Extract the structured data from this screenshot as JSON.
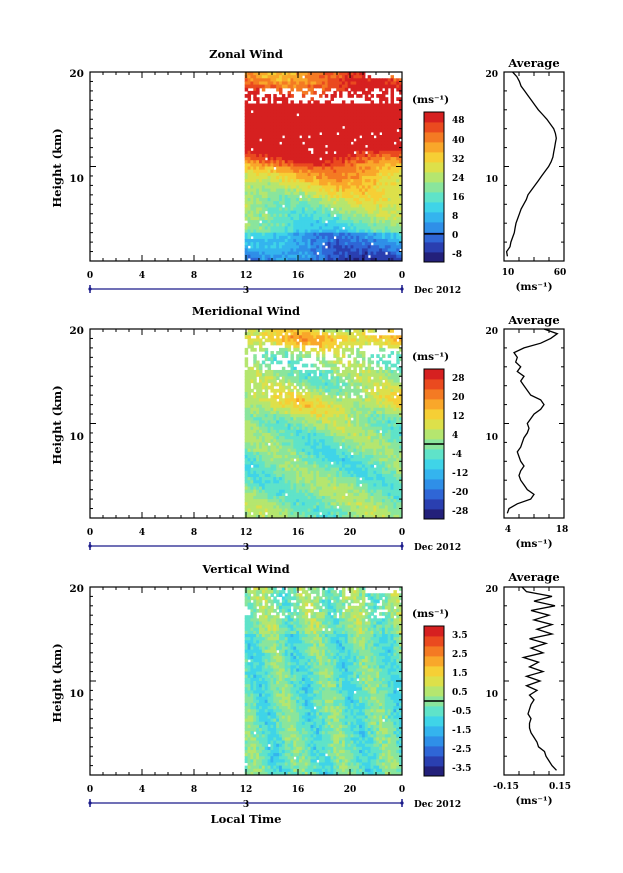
{
  "chart_data": [
    {
      "type": "heatmap",
      "title": "Zonal Wind",
      "ylabel": "Height (km)",
      "ylim": [
        0,
        20
      ],
      "y_ticks": [
        "10",
        "20"
      ],
      "x_ticks": [
        "0",
        "4",
        "8",
        "12",
        "16",
        "20",
        "0"
      ],
      "date_label": "3",
      "date_suffix": "Dec 2012",
      "data_start_hour": 11.9,
      "colorbar": {
        "unit": "(ms⁻¹)",
        "labels": [
          "48",
          "40",
          "32",
          "24",
          "16",
          "8",
          "0",
          "-8"
        ],
        "range": [
          -12,
          52
        ]
      },
      "average": {
        "title": "Average",
        "x_ticks": [
          "10",
          "60"
        ],
        "xlim": [
          0,
          70
        ],
        "xunit": "(ms⁻¹)",
        "y_ticks": [
          "10",
          "20"
        ],
        "heights": [
          0.5,
          1,
          1.5,
          2,
          2.5,
          3,
          3.5,
          4,
          4.5,
          5,
          5.5,
          6,
          6.5,
          7,
          7.5,
          8,
          8.5,
          9,
          9.5,
          10,
          10.5,
          11,
          11.5,
          12,
          12.5,
          13,
          13.5,
          14,
          14.5,
          15,
          15.5,
          16,
          16.5,
          17,
          17.5,
          18,
          18.5,
          19,
          19.5,
          20
        ],
        "values": [
          4,
          3,
          7,
          8,
          10,
          12,
          13,
          14,
          16,
          18,
          20,
          23,
          26,
          28,
          32,
          36,
          40,
          44,
          48,
          52,
          55,
          57,
          58,
          59,
          60,
          61,
          60,
          58,
          54,
          50,
          45,
          40,
          36,
          32,
          28,
          24,
          20,
          18,
          15,
          10
        ]
      }
    },
    {
      "type": "heatmap",
      "title": "Meridional Wind",
      "ylabel": "Height (km)",
      "ylim": [
        0,
        20
      ],
      "y_ticks": [
        "10",
        "20"
      ],
      "x_ticks": [
        "0",
        "4",
        "8",
        "12",
        "16",
        "20",
        "0"
      ],
      "date_label": "3",
      "date_suffix": "Dec 2012",
      "data_start_hour": 11.9,
      "colorbar": {
        "unit": "(ms⁻¹)",
        "labels": [
          "28",
          "20",
          "12",
          "4",
          "-4",
          "-12",
          "-20",
          "-28"
        ],
        "range": [
          -32,
          32
        ]
      },
      "average": {
        "title": "Average",
        "x_ticks": [
          "4",
          "18"
        ],
        "xlim": [
          0,
          18
        ],
        "xunit": "(ms⁻¹)",
        "y_ticks": [
          "10",
          "20"
        ],
        "heights": [
          0.5,
          1,
          1.5,
          2,
          2.5,
          3,
          3.5,
          4,
          4.5,
          5,
          5.5,
          6,
          6.5,
          7,
          7.5,
          8,
          8.5,
          9,
          9.5,
          10,
          10.5,
          11,
          11.5,
          12,
          12.5,
          13,
          13.5,
          14,
          14.5,
          15,
          15.5,
          16,
          16.5,
          17,
          17.5,
          18,
          18.5,
          19,
          19.5,
          20
        ],
        "values": [
          1,
          1.5,
          4,
          8,
          9,
          7,
          6,
          5,
          4.5,
          5,
          6,
          5,
          4.5,
          4,
          5,
          5.5,
          6,
          7,
          7.5,
          7,
          8,
          9,
          11,
          12,
          11,
          8,
          7,
          6,
          5,
          6,
          4,
          5,
          3.5,
          4,
          3,
          6,
          11,
          14,
          16,
          12
        ]
      }
    },
    {
      "type": "heatmap",
      "title": "Vertical Wind",
      "ylabel": "Height (km)",
      "ylim": [
        0,
        20
      ],
      "y_ticks": [
        "10",
        "20"
      ],
      "x_ticks": [
        "0",
        "4",
        "8",
        "12",
        "16",
        "20",
        "0"
      ],
      "date_label": "3",
      "date_suffix": "Dec 2012",
      "xlabel": "Local Time",
      "data_start_hour": 11.9,
      "colorbar": {
        "unit": "(ms⁻¹)",
        "labels": [
          "3.5",
          "2.5",
          "1.5",
          "0.5",
          "-0.5",
          "-1.5",
          "-2.5",
          "-3.5"
        ],
        "range": [
          -4,
          4
        ]
      },
      "average": {
        "title": "Average",
        "x_ticks": [
          "-0.15",
          "0.15"
        ],
        "xlim": [
          -0.2,
          0.2
        ],
        "xunit": "(ms⁻¹)",
        "y_ticks": [
          "10",
          "20"
        ],
        "heights": [
          0.5,
          1,
          1.5,
          2,
          2.5,
          3,
          3.5,
          4,
          4.5,
          5,
          5.5,
          6,
          6.5,
          7,
          7.5,
          8,
          8.5,
          9,
          9.5,
          10,
          10.5,
          11,
          11.5,
          12,
          12.5,
          13,
          13.5,
          14,
          14.5,
          15,
          15.5,
          16,
          16.5,
          17,
          17.5,
          18,
          18.5,
          19,
          19.5,
          20
        ],
        "values": [
          0.15,
          0.12,
          0.1,
          0.08,
          0.07,
          0.03,
          0.02,
          0.0,
          -0.02,
          -0.03,
          -0.03,
          -0.02,
          -0.04,
          -0.03,
          -0.02,
          0.0,
          -0.03,
          0.02,
          -0.05,
          0.04,
          -0.05,
          0.06,
          -0.03,
          0.03,
          -0.07,
          0.06,
          -0.02,
          0.08,
          -0.03,
          0.12,
          0.02,
          0.12,
          0.0,
          0.1,
          -0.02,
          0.14,
          0.0,
          0.12,
          -0.05,
          -0.08
        ]
      }
    }
  ]
}
